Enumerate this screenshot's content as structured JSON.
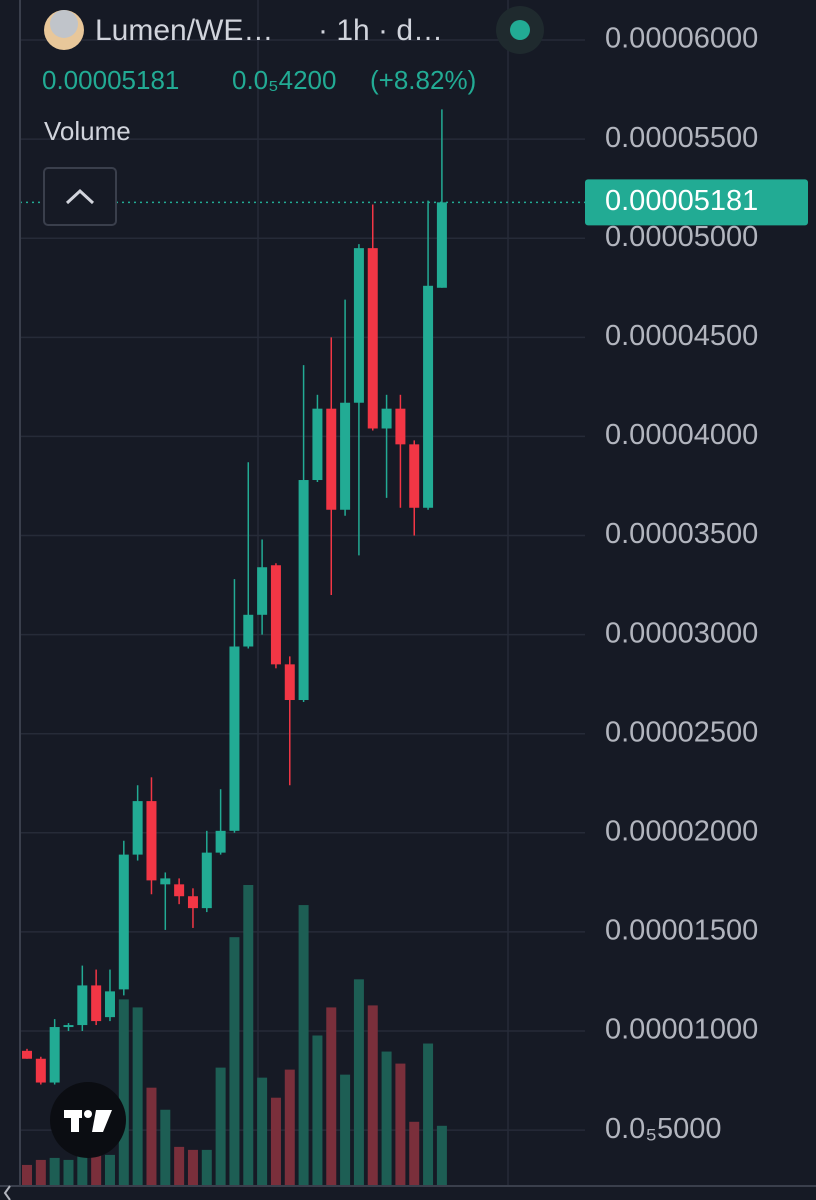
{
  "chart_data": {
    "type": "candlestick",
    "title": "Lumen/WE…",
    "interval": "· 1h · d…",
    "price": "0.00005181",
    "change": "0.0₅4200",
    "change_pct": "(+8.82%)",
    "volume_label": "Volume",
    "open": [
      9e-06,
      8.6e-06,
      7.4e-06,
      1.02e-05,
      1.03e-05,
      1.23e-05,
      1.07e-05,
      1.21e-05,
      1.89e-05,
      2.16e-05,
      1.74e-05,
      1.74e-05,
      1.68e-05,
      1.62e-05,
      1.9e-05,
      2.01e-05,
      2.94e-05,
      3.1e-05,
      3.35e-05,
      2.85e-05,
      2.67e-05,
      3.78e-05,
      4.14e-05,
      3.63e-05,
      4.17e-05,
      4.95e-05,
      4.04e-05,
      4.14e-05,
      3.96e-05,
      3.64e-05,
      4.75e-05
    ],
    "high": [
      9.1e-06,
      8.7e-06,
      1.06e-05,
      1.04e-05,
      1.33e-05,
      1.31e-05,
      1.31e-05,
      1.96e-05,
      2.24e-05,
      2.28e-05,
      1.8e-05,
      1.77e-05,
      1.72e-05,
      2.01e-05,
      2.22e-05,
      3.28e-05,
      3.87e-05,
      3.48e-05,
      3.36e-05,
      2.89e-05,
      4.36e-05,
      4.21e-05,
      4.5e-05,
      4.69e-05,
      4.97e-05,
      5.17e-05,
      4.21e-05,
      4.21e-05,
      3.98e-05,
      5.19e-05,
      5.65e-05
    ],
    "low": [
      8.6e-06,
      7.3e-06,
      7.3e-06,
      1e-05,
      1e-05,
      1.03e-05,
      1.05e-05,
      1.18e-05,
      1.86e-05,
      1.69e-05,
      1.51e-05,
      1.64e-05,
      1.52e-05,
      1.6e-05,
      1.89e-05,
      2e-05,
      2.93e-05,
      3e-05,
      2.83e-05,
      2.24e-05,
      2.66e-05,
      3.77e-05,
      3.2e-05,
      3.6e-05,
      3.4e-05,
      4.03e-05,
      3.69e-05,
      3.64e-05,
      3.5e-05,
      3.63e-05,
      4.75e-05
    ],
    "close": [
      8.6e-06,
      7.4e-06,
      1.02e-05,
      1.03e-05,
      1.23e-05,
      1.05e-05,
      1.2e-05,
      1.89e-05,
      2.16e-05,
      1.76e-05,
      1.77e-05,
      1.68e-05,
      1.62e-05,
      1.9e-05,
      2.01e-05,
      2.94e-05,
      3.1e-05,
      3.34e-05,
      2.85e-05,
      2.67e-05,
      3.78e-05,
      4.14e-05,
      3.63e-05,
      4.17e-05,
      4.95e-05,
      4.04e-05,
      4.14e-05,
      3.96e-05,
      3.64e-05,
      4.76e-05,
      5.181e-05
    ],
    "volume": [
      20,
      25,
      27,
      25,
      30,
      35,
      30,
      185,
      177,
      97,
      75,
      38,
      35,
      35,
      117,
      247,
      299,
      107,
      87,
      115,
      279,
      149,
      177,
      110,
      205,
      179,
      133,
      121,
      63,
      141,
      59
    ],
    "ylim": [
      2.23e-06,
      6.202e-05
    ],
    "yticks": [
      {
        "value": 6e-05,
        "label": "0.00006000"
      },
      {
        "value": 5.5e-05,
        "label": "0.00005500"
      },
      {
        "value": 5e-05,
        "label": "0.00005000"
      },
      {
        "value": 4.5e-05,
        "label": "0.00004500"
      },
      {
        "value": 4e-05,
        "label": "0.00004000"
      },
      {
        "value": 3.5e-05,
        "label": "0.00003500"
      },
      {
        "value": 3e-05,
        "label": "0.00003000"
      },
      {
        "value": 2.5e-05,
        "label": "0.00002500"
      },
      {
        "value": 2e-05,
        "label": "0.00002000"
      },
      {
        "value": 1.5e-05,
        "label": "0.00001500"
      },
      {
        "value": 1e-05,
        "label": "0.00001000"
      },
      {
        "value": 5e-06,
        "label": "0.0₅5000"
      }
    ],
    "price_line": {
      "value": 5.181e-05,
      "label": "0.00005181"
    },
    "grid": true,
    "up_color": "#22ab94",
    "down_color": "#f23645",
    "volume_up_color": "#1d5e54",
    "volume_down_color": "#7a2f3b"
  }
}
